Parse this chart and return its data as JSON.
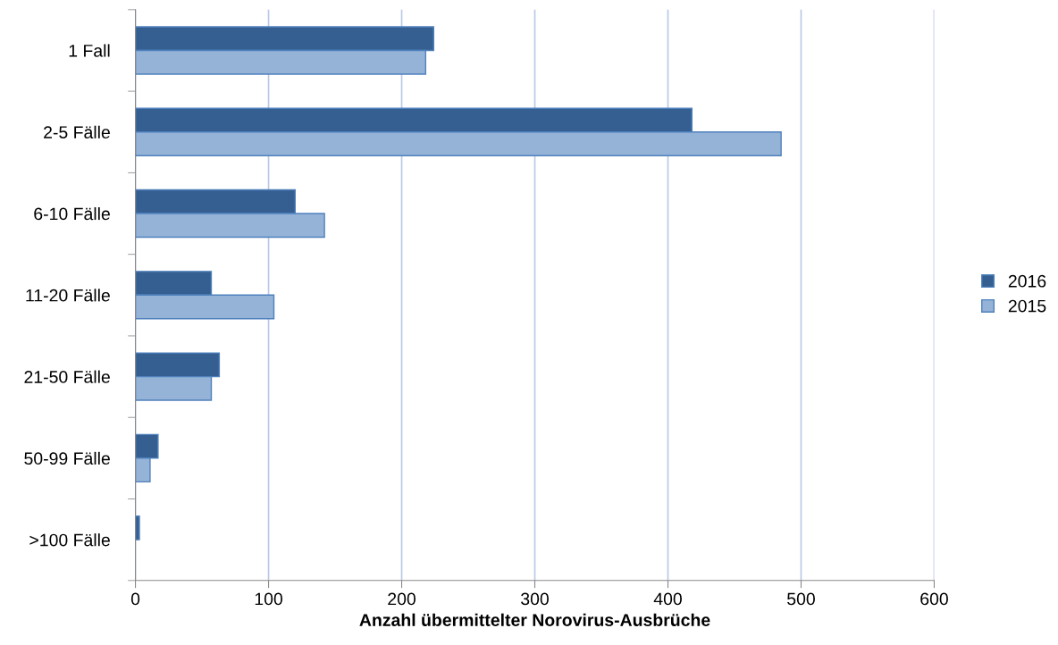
{
  "chart_data": {
    "type": "bar",
    "orientation": "horizontal",
    "xlabel": "Anzahl übermittelter Norovirus-Ausbrüche",
    "categories": [
      "1 Fall",
      "2-5 Fälle",
      "6-10 Fälle",
      "11-20 Fälle",
      "21-50 Fälle",
      "50-99 Fälle",
      ">100 Fälle"
    ],
    "series": [
      {
        "name": "2016",
        "color": "#355f91",
        "values": [
          224,
          418,
          120,
          57,
          63,
          17,
          3
        ]
      },
      {
        "name": "2015",
        "color": "#95b3d7",
        "values": [
          218,
          485,
          142,
          104,
          57,
          11,
          null
        ]
      }
    ],
    "xlim": [
      0,
      600
    ],
    "xticks": [
      0,
      100,
      200,
      300,
      400,
      500,
      600
    ],
    "grid": "x",
    "legend": "right"
  }
}
